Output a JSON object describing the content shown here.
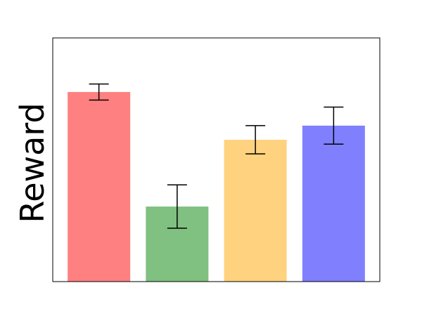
{
  "chart_data": {
    "type": "bar",
    "y_label": "Reward",
    "categories": [
      null,
      null,
      null,
      null
    ],
    "values": [
      0.778,
      0.308,
      0.582,
      0.64
    ],
    "errors": [
      0.033,
      0.089,
      0.058,
      0.076
    ],
    "colors": [
      "#ff8080",
      "#80c080",
      "#ffd280",
      "#8080ff"
    ],
    "ylim": [
      0,
      1
    ]
  }
}
